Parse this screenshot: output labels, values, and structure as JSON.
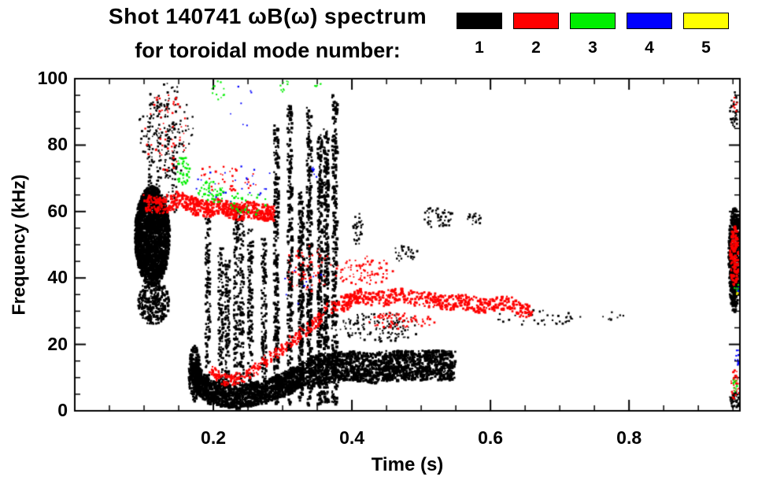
{
  "title": {
    "line1": "Shot 140741 ωB(ω) spectrum",
    "line2": "for toroidal mode number:"
  },
  "legend": {
    "items": [
      {
        "label": "1",
        "color": "#000000"
      },
      {
        "label": "2",
        "color": "#ff0000"
      },
      {
        "label": "3",
        "color": "#00ee00"
      },
      {
        "label": "4",
        "color": "#0000ff"
      },
      {
        "label": "5",
        "color": "#ffff00"
      }
    ]
  },
  "chart_data": {
    "type": "scatter",
    "title": "Shot 140741 ωB(ω) spectrum for toroidal mode number: 1 2 3 4 5",
    "xlabel": "Time (s)",
    "ylabel": "Frequency (kHz)",
    "xlim": [
      0,
      0.96
    ],
    "ylim": [
      0,
      100
    ],
    "xticks": [
      0.2,
      0.4,
      0.6,
      0.8
    ],
    "xtick_labels": [
      "0.2",
      "0.4",
      "0.6",
      "0.8"
    ],
    "yticks": [
      0,
      20,
      40,
      60,
      80,
      100
    ],
    "ytick_labels": [
      "0",
      "20",
      "40",
      "60",
      "80",
      "100"
    ],
    "x_minor_step": 0.05,
    "y_minor_step": 5,
    "grid": false,
    "legend_position": "top-right",
    "series": [
      {
        "name": "1",
        "color": "#000000",
        "clusters": [
          {
            "kind": "blob",
            "t": [
              0.085,
              0.135
            ],
            "f": [
              38,
              68
            ],
            "n": 2200,
            "s": [
              2,
              4
            ]
          },
          {
            "kind": "blob",
            "t": [
              0.09,
              0.135
            ],
            "f": [
              26,
              40
            ],
            "n": 300,
            "s": [
              2,
              3.5
            ]
          },
          {
            "kind": "blob",
            "t": [
              0.09,
              0.17
            ],
            "f": [
              70,
              100
            ],
            "n": 120,
            "s": [
              1.5,
              3
            ]
          },
          {
            "kind": "vstreaks",
            "t": [
              0.1,
              0.145
            ],
            "f": [
              60,
              97
            ],
            "cols": 4,
            "n": 200,
            "s": [
              1.5,
              3
            ]
          },
          {
            "kind": "vstreaks",
            "t": [
              0.185,
              0.275
            ],
            "f": [
              8,
              64
            ],
            "cols": 7,
            "n": 900,
            "s": [
              2,
              3.5
            ]
          },
          {
            "kind": "curve",
            "pts": [
              [
                0.168,
                13
              ],
              [
                0.178,
                9
              ],
              [
                0.19,
                6.5
              ],
              [
                0.21,
                5
              ],
              [
                0.23,
                4.5
              ],
              [
                0.25,
                5
              ],
              [
                0.27,
                6
              ],
              [
                0.29,
                7.5
              ],
              [
                0.31,
                9.5
              ],
              [
                0.33,
                11.5
              ]
            ],
            "w": 7,
            "n": 1500,
            "s": [
              2,
              4
            ]
          },
          {
            "kind": "blob",
            "t": [
              0.163,
              0.18
            ],
            "f": [
              3,
              20
            ],
            "n": 200,
            "s": [
              2,
              3.5
            ]
          },
          {
            "kind": "vstreaks",
            "t": [
              0.285,
              0.345
            ],
            "f": [
              2,
              100
            ],
            "cols": 4,
            "n": 1000,
            "s": [
              2,
              4
            ]
          },
          {
            "kind": "vstreaks",
            "t": [
              0.35,
              0.378
            ],
            "f": [
              2,
              100
            ],
            "cols": 3,
            "n": 800,
            "s": [
              2,
              4
            ]
          },
          {
            "kind": "curve",
            "pts": [
              [
                0.335,
                12
              ],
              [
                0.365,
                13
              ],
              [
                0.395,
                14
              ],
              [
                0.425,
                13
              ],
              [
                0.455,
                14
              ],
              [
                0.485,
                14
              ],
              [
                0.515,
                14
              ],
              [
                0.545,
                14
              ]
            ],
            "w": 9,
            "n": 1400,
            "s": [
              2,
              4
            ]
          },
          {
            "kind": "blob",
            "t": [
              0.38,
              0.5
            ],
            "f": [
              21,
              30
            ],
            "n": 140,
            "s": [
              1.5,
              3
            ]
          },
          {
            "kind": "blob",
            "t": [
              0.4,
              0.415
            ],
            "f": [
              50,
              60
            ],
            "n": 35,
            "s": [
              1.5,
              3
            ]
          },
          {
            "kind": "blob",
            "t": [
              0.5,
              0.545
            ],
            "f": [
              55,
              62
            ],
            "n": 55,
            "s": [
              1.5,
              3
            ]
          },
          {
            "kind": "blob",
            "t": [
              0.565,
              0.585
            ],
            "f": [
              56,
              60
            ],
            "n": 22,
            "s": [
              1.5,
              3
            ]
          },
          {
            "kind": "blob",
            "t": [
              0.6,
              0.73
            ],
            "f": [
              26,
              31
            ],
            "n": 40,
            "s": [
              1.5,
              3
            ]
          },
          {
            "kind": "blob",
            "t": [
              0.455,
              0.495
            ],
            "f": [
              45,
              50
            ],
            "n": 28,
            "s": [
              1.5,
              3
            ]
          },
          {
            "kind": "blob",
            "t": [
              0.75,
              0.8
            ],
            "f": [
              27,
              30
            ],
            "n": 10,
            "s": [
              1.5,
              2.5
            ]
          },
          {
            "kind": "blob",
            "t": [
              0.942,
              0.958
            ],
            "f": [
              30,
              62
            ],
            "n": 520,
            "s": [
              2,
              4
            ]
          },
          {
            "kind": "blob",
            "t": [
              0.944,
              0.956
            ],
            "f": [
              85,
              97
            ],
            "n": 40,
            "s": [
              1.5,
              3
            ]
          },
          {
            "kind": "blob",
            "t": [
              0.944,
              0.958
            ],
            "f": [
              1,
              6
            ],
            "n": 55,
            "s": [
              1.5,
              3
            ]
          }
        ]
      },
      {
        "name": "2",
        "color": "#ff0000",
        "clusters": [
          {
            "kind": "curve",
            "pts": [
              [
                0.1,
                63
              ],
              [
                0.125,
                62
              ],
              [
                0.15,
                64
              ],
              [
                0.17,
                62
              ],
              [
                0.19,
                61
              ],
              [
                0.21,
                62
              ],
              [
                0.23,
                60
              ],
              [
                0.25,
                61
              ],
              [
                0.27,
                60
              ],
              [
                0.285,
                60
              ]
            ],
            "w": 5,
            "n": 620,
            "s": [
              2,
              3.5
            ]
          },
          {
            "kind": "blob",
            "t": [
              0.1,
              0.16
            ],
            "f": [
              72,
              96
            ],
            "n": 55,
            "s": [
              1.5,
              3
            ]
          },
          {
            "kind": "blob",
            "t": [
              0.165,
              0.27
            ],
            "f": [
              66,
              75
            ],
            "n": 35,
            "s": [
              1.5,
              3
            ]
          },
          {
            "kind": "curve",
            "pts": [
              [
                0.195,
                12
              ],
              [
                0.215,
                9.5
              ],
              [
                0.235,
                10
              ],
              [
                0.26,
                13
              ],
              [
                0.285,
                17
              ],
              [
                0.31,
                21
              ],
              [
                0.335,
                25
              ],
              [
                0.355,
                28.5
              ]
            ],
            "w": 3.5,
            "n": 280,
            "s": [
              2,
              3
            ]
          },
          {
            "kind": "curve",
            "pts": [
              [
                0.36,
                31
              ],
              [
                0.39,
                33
              ],
              [
                0.41,
                35
              ],
              [
                0.44,
                34
              ],
              [
                0.47,
                35
              ],
              [
                0.5,
                34
              ],
              [
                0.53,
                33
              ],
              [
                0.56,
                33
              ],
              [
                0.59,
                32
              ],
              [
                0.62,
                33
              ],
              [
                0.655,
                30
              ]
            ],
            "w": 4.5,
            "n": 560,
            "s": [
              2,
              3.5
            ]
          },
          {
            "kind": "blob",
            "t": [
              0.37,
              0.46
            ],
            "f": [
              38,
              47
            ],
            "n": 80,
            "s": [
              1.5,
              3
            ]
          },
          {
            "kind": "blob",
            "t": [
              0.3,
              0.37
            ],
            "f": [
              36,
              50
            ],
            "n": 60,
            "s": [
              1.5,
              3
            ]
          },
          {
            "kind": "blob",
            "t": [
              0.42,
              0.52
            ],
            "f": [
              25,
              30
            ],
            "n": 70,
            "s": [
              1.5,
              3
            ]
          },
          {
            "kind": "blob",
            "t": [
              0.944,
              0.958
            ],
            "f": [
              38,
              56
            ],
            "n": 150,
            "s": [
              2,
              3.5
            ]
          },
          {
            "kind": "blob",
            "t": [
              0.949,
              0.956
            ],
            "f": [
              90,
              95
            ],
            "n": 9,
            "s": [
              1.5,
              2.5
            ]
          },
          {
            "kind": "blob",
            "t": [
              0.946,
              0.958
            ],
            "f": [
              3,
              13
            ],
            "n": 30,
            "s": [
              1.5,
              3
            ]
          }
        ]
      },
      {
        "name": "3",
        "color": "#00ee00",
        "clusters": [
          {
            "kind": "blob",
            "t": [
              0.145,
              0.165
            ],
            "f": [
              68,
              77
            ],
            "n": 42,
            "s": [
              1.5,
              3
            ]
          },
          {
            "kind": "blob",
            "t": [
              0.175,
              0.215
            ],
            "f": [
              62,
              70
            ],
            "n": 50,
            "s": [
              1.5,
              3
            ]
          },
          {
            "kind": "blob",
            "t": [
              0.22,
              0.275
            ],
            "f": [
              59,
              67
            ],
            "n": 32,
            "s": [
              1.5,
              3
            ]
          },
          {
            "kind": "blob",
            "t": [
              0.195,
              0.215
            ],
            "f": [
              93,
              100
            ],
            "n": 12,
            "s": [
              1.5,
              2.5
            ]
          },
          {
            "kind": "blob",
            "t": [
              0.295,
              0.31
            ],
            "f": [
              96,
              100
            ],
            "n": 9,
            "s": [
              1.5,
              2.5
            ]
          },
          {
            "kind": "blob",
            "t": [
              0.345,
              0.355
            ],
            "f": [
              97,
              100
            ],
            "n": 5,
            "s": [
              1.5,
              2.5
            ]
          },
          {
            "kind": "blob",
            "t": [
              0.948,
              0.956
            ],
            "f": [
              6,
              10
            ],
            "n": 12,
            "s": [
              1.5,
              2.5
            ]
          },
          {
            "kind": "blob",
            "t": [
              0.951,
              0.957
            ],
            "f": [
              36,
              39
            ],
            "n": 5,
            "s": [
              1.5,
              2.5
            ]
          }
        ]
      },
      {
        "name": "4",
        "color": "#0000ff",
        "clusters": [
          {
            "kind": "blob",
            "t": [
              0.17,
              0.31
            ],
            "f": [
              63,
              74
            ],
            "n": 26,
            "s": [
              1.5,
              2.5
            ]
          },
          {
            "kind": "blob",
            "t": [
              0.34,
              0.352
            ],
            "f": [
              70,
              74
            ],
            "n": 7,
            "s": [
              1.5,
              2.5
            ]
          },
          {
            "kind": "blob",
            "t": [
              0.22,
              0.26
            ],
            "f": [
              85,
              100
            ],
            "n": 7,
            "s": [
              1.5,
              2.5
            ]
          },
          {
            "kind": "blob",
            "t": [
              0.3,
              0.36
            ],
            "f": [
              30,
              45
            ],
            "n": 9,
            "s": [
              1.5,
              2.5
            ]
          },
          {
            "kind": "blob",
            "t": [
              0.952,
              0.958
            ],
            "f": [
              13,
              19
            ],
            "n": 9,
            "s": [
              1.5,
              2.5
            ]
          },
          {
            "kind": "blob",
            "t": [
              0.954,
              0.958
            ],
            "f": [
              35,
              38
            ],
            "n": 4,
            "s": [
              1.5,
              2.5
            ]
          }
        ]
      },
      {
        "name": "5",
        "color": "#ffff00",
        "clusters": [
          {
            "kind": "blob",
            "t": [
              0.953,
              0.958
            ],
            "f": [
              35,
              37
            ],
            "n": 3,
            "s": [
              1.5,
              2.5
            ]
          }
        ]
      }
    ]
  }
}
